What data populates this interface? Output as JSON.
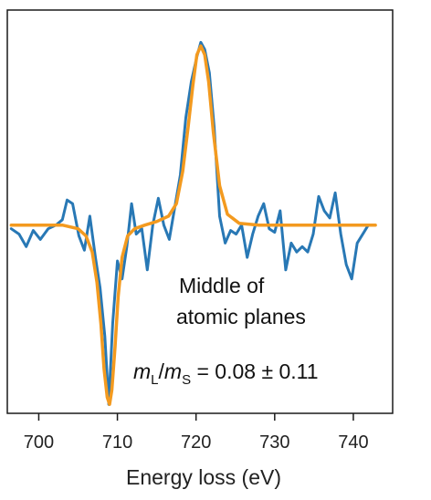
{
  "chart_data": {
    "type": "line",
    "title": "",
    "xlabel": "Energy loss (eV)",
    "ylabel": "",
    "xlim": [
      696,
      745
    ],
    "ylim": [
      -1.05,
      1.2
    ],
    "xticks": [
      700,
      710,
      720,
      730,
      740
    ],
    "grid": false,
    "annotation": {
      "line1": "Middle of",
      "line2": "atomic planes",
      "ratio_m1": "m",
      "ratio_sub1": "L",
      "ratio_slash": "/",
      "ratio_m2": "m",
      "ratio_sub2": "S",
      "ratio_value": " = 0.08 ± 0.11"
    },
    "series": [
      {
        "color": "#2878b5",
        "x": [
          696.5,
          697.5,
          698.4,
          699.3,
          700.2,
          701.2,
          702.2,
          703.0,
          703.6,
          704.3,
          705.1,
          705.8,
          706.5,
          707.2,
          707.8,
          708.4,
          708.9,
          709.4,
          710.0,
          710.6,
          711.2,
          711.8,
          712.4,
          713.1,
          713.8,
          714.5,
          715.2,
          715.9,
          716.6,
          717.3,
          718.0,
          718.7,
          719.4,
          720.1,
          720.6,
          721.1,
          721.7,
          722.3,
          723.0,
          723.7,
          724.4,
          725.1,
          725.8,
          726.5,
          727.2,
          727.9,
          728.6,
          729.3,
          730.0,
          730.7,
          731.4,
          732.1,
          732.8,
          733.5,
          734.2,
          734.9,
          735.6,
          736.3,
          737.0,
          737.7,
          738.4,
          739.1,
          739.8,
          740.5,
          741.2,
          741.9,
          742.6
        ],
        "y": [
          -0.02,
          -0.05,
          -0.12,
          -0.03,
          -0.08,
          -0.02,
          0.0,
          0.03,
          0.14,
          0.12,
          -0.06,
          -0.14,
          0.05,
          -0.18,
          -0.35,
          -0.62,
          -1.0,
          -0.55,
          -0.2,
          -0.3,
          -0.12,
          0.12,
          -0.05,
          -0.02,
          -0.25,
          0.0,
          0.15,
          0.0,
          -0.08,
          0.1,
          0.28,
          0.6,
          0.8,
          0.94,
          1.02,
          0.98,
          0.85,
          0.55,
          0.05,
          -0.1,
          -0.03,
          -0.05,
          0.0,
          -0.18,
          -0.05,
          0.05,
          0.12,
          -0.02,
          -0.04,
          0.08,
          -0.25,
          -0.1,
          -0.15,
          -0.12,
          -0.15,
          -0.05,
          0.16,
          0.08,
          0.04,
          0.18,
          -0.05,
          -0.22,
          -0.3,
          -0.1,
          -0.05,
          0.0,
          0.0
        ]
      },
      {
        "color": "#f39a1f",
        "x": [
          696.5,
          700.0,
          703.0,
          705.0,
          706.0,
          706.8,
          707.4,
          707.9,
          708.3,
          708.7,
          709.0,
          709.3,
          709.7,
          710.1,
          710.6,
          711.3,
          712.2,
          713.5,
          715.0,
          716.5,
          717.5,
          718.3,
          719.0,
          719.6,
          720.1,
          720.6,
          721.1,
          721.6,
          722.2,
          723.0,
          724.0,
          725.5,
          728.0,
          732.0,
          736.0,
          740.0,
          742.8
        ],
        "y": [
          0.0,
          0.0,
          0.0,
          -0.02,
          -0.06,
          -0.15,
          -0.32,
          -0.55,
          -0.8,
          -0.96,
          -1.0,
          -0.92,
          -0.68,
          -0.4,
          -0.18,
          -0.06,
          -0.02,
          0.0,
          0.02,
          0.05,
          0.12,
          0.3,
          0.55,
          0.78,
          0.95,
          1.0,
          0.95,
          0.8,
          0.52,
          0.22,
          0.06,
          0.01,
          0.0,
          0.0,
          0.0,
          0.0,
          0.0
        ]
      }
    ]
  }
}
